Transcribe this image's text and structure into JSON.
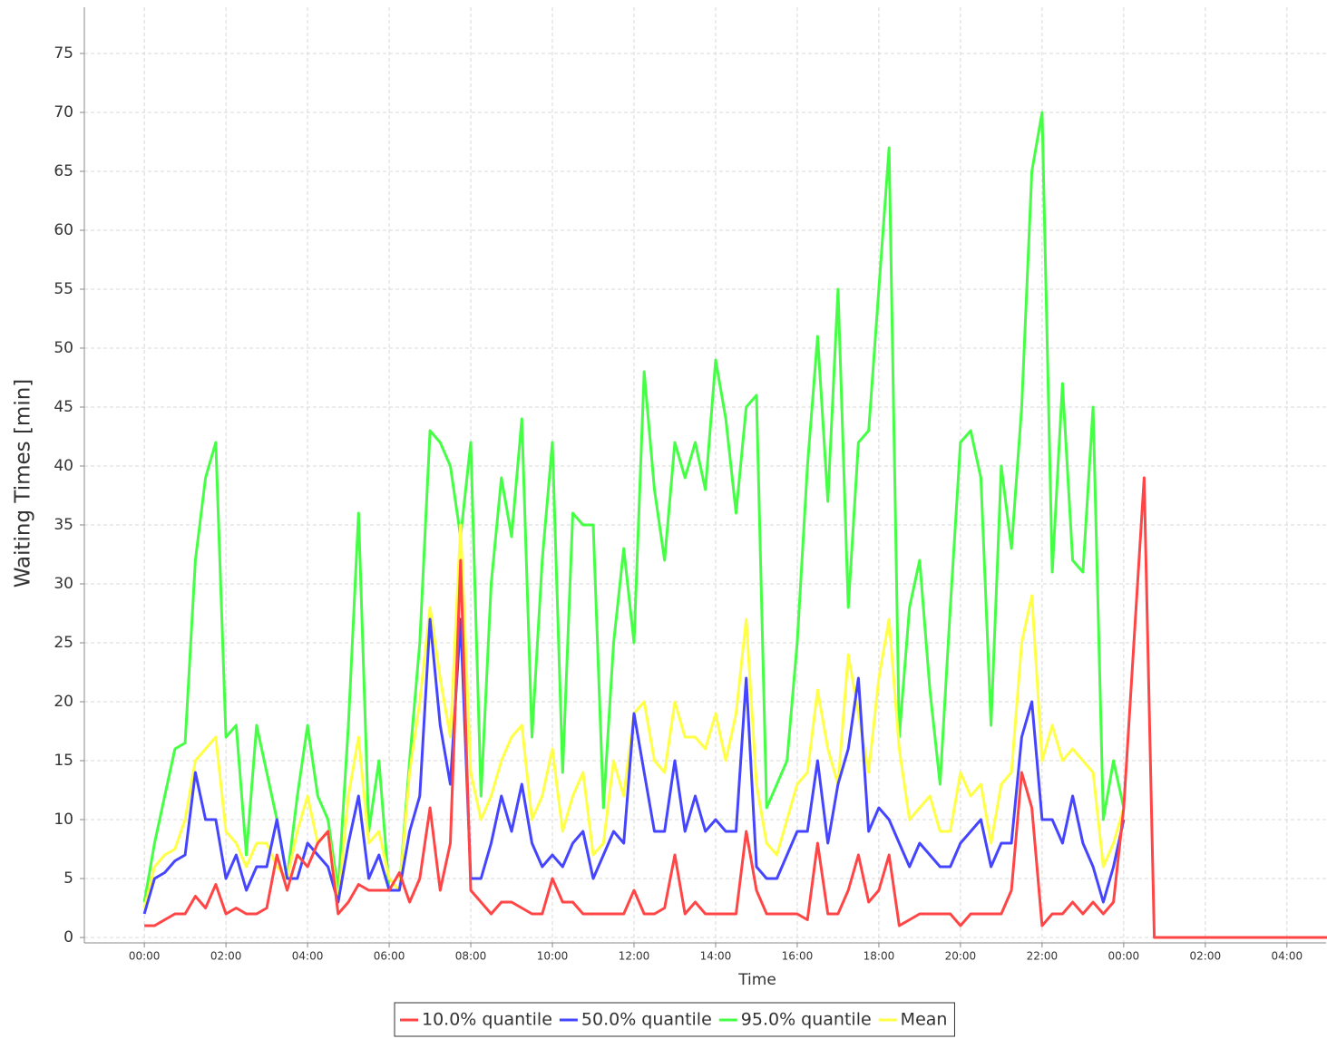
{
  "chart_data": {
    "type": "line",
    "x_label": "Time",
    "y_label": "Waiting Times [min]",
    "x": [
      0,
      0.25,
      0.5,
      0.75,
      1,
      1.25,
      1.5,
      1.75,
      2,
      2.25,
      2.5,
      2.75,
      3,
      3.25,
      3.5,
      3.75,
      4,
      4.25,
      4.5,
      4.75,
      5,
      5.25,
      5.5,
      5.75,
      6,
      6.25,
      6.5,
      6.75,
      7,
      7.25,
      7.5,
      7.75,
      8,
      8.25,
      8.5,
      8.75,
      9,
      9.25,
      9.5,
      9.75,
      10,
      10.25,
      10.5,
      10.75,
      11,
      11.25,
      11.5,
      11.75,
      12,
      12.25,
      12.5,
      12.75,
      13,
      13.25,
      13.5,
      13.75,
      14,
      14.25,
      14.5,
      14.75,
      15,
      15.25,
      15.5,
      15.75,
      16,
      16.25,
      16.5,
      16.75,
      17,
      17.25,
      17.5,
      17.75,
      18,
      18.25,
      18.5,
      18.75,
      19,
      19.25,
      19.5,
      19.75,
      20,
      20.25,
      20.5,
      20.75,
      21,
      21.25,
      21.5,
      21.75,
      22,
      22.25,
      22.5,
      22.75,
      23,
      23.25,
      23.5,
      23.75,
      24,
      24.25,
      24.5,
      24.75,
      29
    ],
    "series": [
      {
        "name": "10.0% quantile",
        "color": "#ff4545",
        "values": [
          1,
          1,
          1.5,
          2,
          2,
          3.5,
          2.5,
          4.5,
          2,
          2.5,
          2,
          2,
          2.5,
          7,
          4,
          7,
          6,
          8,
          9,
          2,
          3,
          4.5,
          4,
          4,
          4,
          5.5,
          3,
          5,
          11,
          4,
          8,
          32,
          4,
          3,
          2,
          3,
          3,
          2.5,
          2,
          2,
          5,
          3,
          3,
          2,
          2,
          2,
          2,
          2,
          4,
          2,
          2,
          2.5,
          7,
          2,
          3,
          2,
          2,
          2,
          2,
          9,
          4,
          2,
          2,
          2,
          2,
          1.5,
          8,
          2,
          2,
          4,
          7,
          3,
          4,
          7,
          1,
          1.5,
          2,
          2,
          2,
          2,
          1,
          2,
          2,
          2,
          2,
          4,
          14,
          11,
          1,
          2,
          2,
          3,
          2,
          3,
          2,
          3,
          11,
          25,
          39,
          0,
          0
        ]
      },
      {
        "name": "50.0% quantile",
        "color": "#4545ff",
        "values": [
          2,
          5,
          5.5,
          6.5,
          7,
          14,
          10,
          10,
          5,
          7,
          4,
          6,
          6,
          10,
          5,
          5,
          8,
          7,
          6,
          3,
          8,
          12,
          5,
          7,
          4,
          4,
          9,
          12,
          27,
          18,
          13,
          27,
          5,
          5,
          8,
          12,
          9,
          13,
          8,
          6,
          7,
          6,
          8,
          9,
          5,
          7,
          9,
          8,
          19,
          14,
          9,
          9,
          15,
          9,
          12,
          9,
          10,
          9,
          9,
          22,
          6,
          5,
          5,
          7,
          9,
          9,
          15,
          8,
          13,
          16,
          22,
          9,
          11,
          10,
          8,
          6,
          8,
          7,
          6,
          6,
          8,
          9,
          10,
          6,
          8,
          8,
          17,
          20,
          10,
          10,
          8,
          12,
          8,
          6,
          3,
          6,
          10,
          null,
          null,
          null,
          null
        ]
      },
      {
        "name": "95.0% quantile",
        "color": "#45ff45",
        "values": [
          3,
          8,
          12,
          16,
          16.5,
          32,
          39,
          42,
          17,
          18,
          7,
          18,
          14,
          10,
          5,
          12,
          18,
          12,
          10,
          4,
          18,
          36,
          9,
          15,
          4,
          4,
          15,
          25,
          43,
          42,
          40,
          34,
          42,
          12,
          30,
          39,
          34,
          44,
          17,
          32,
          42,
          14,
          36,
          35,
          35,
          11,
          25,
          33,
          25,
          48,
          38,
          32,
          42,
          39,
          42,
          38,
          49,
          44,
          36,
          45,
          46,
          11,
          13,
          15,
          25,
          40,
          51,
          37,
          55,
          28,
          42,
          43,
          55,
          67,
          17,
          28,
          32,
          21,
          13,
          28,
          42,
          43,
          39,
          18,
          40,
          33,
          45,
          65,
          70,
          31,
          47,
          32,
          31,
          45,
          10,
          15,
          11,
          null,
          null,
          null,
          null
        ]
      },
      {
        "name": "Mean",
        "color": "#ffff45",
        "values": [
          2.5,
          6,
          7,
          7.5,
          10,
          15,
          16,
          17,
          9,
          8,
          6,
          8,
          8,
          6,
          5,
          9,
          12,
          8,
          9,
          3,
          12,
          17,
          8,
          9,
          5,
          4,
          14,
          20,
          28,
          22,
          17,
          35,
          14,
          10,
          12,
          15,
          17,
          18,
          10,
          12,
          16,
          9,
          12,
          14,
          7,
          8,
          15,
          12,
          19,
          20,
          15,
          14,
          20,
          17,
          17,
          16,
          19,
          15,
          19,
          27,
          13,
          8,
          7,
          10,
          13,
          14,
          21,
          16,
          13,
          24,
          19,
          14,
          22,
          27,
          16,
          10,
          11,
          12,
          9,
          9,
          14,
          12,
          13,
          8,
          13,
          14,
          25,
          29,
          15,
          18,
          15,
          16,
          15,
          14,
          6,
          8,
          11,
          null,
          null,
          null,
          null
        ]
      }
    ],
    "xlim": [
      -1.47,
      28.96
    ],
    "ylim": [
      -0.46,
      78.92
    ],
    "xticks": [
      {
        "value": 0,
        "label": "00:00"
      },
      {
        "value": 2,
        "label": "02:00"
      },
      {
        "value": 4,
        "label": "04:00"
      },
      {
        "value": 6,
        "label": "06:00"
      },
      {
        "value": 8,
        "label": "08:00"
      },
      {
        "value": 10,
        "label": "10:00"
      },
      {
        "value": 12,
        "label": "12:00"
      },
      {
        "value": 14,
        "label": "14:00"
      },
      {
        "value": 16,
        "label": "16:00"
      },
      {
        "value": 18,
        "label": "18:00"
      },
      {
        "value": 20,
        "label": "20:00"
      },
      {
        "value": 22,
        "label": "22:00"
      },
      {
        "value": 24,
        "label": "00:00"
      },
      {
        "value": 26,
        "label": "02:00"
      },
      {
        "value": 28,
        "label": "04:00"
      }
    ],
    "yticks": [
      0,
      5,
      10,
      15,
      20,
      25,
      30,
      35,
      40,
      45,
      50,
      55,
      60,
      65,
      70,
      75
    ],
    "grid": true,
    "legend": "bottom"
  }
}
